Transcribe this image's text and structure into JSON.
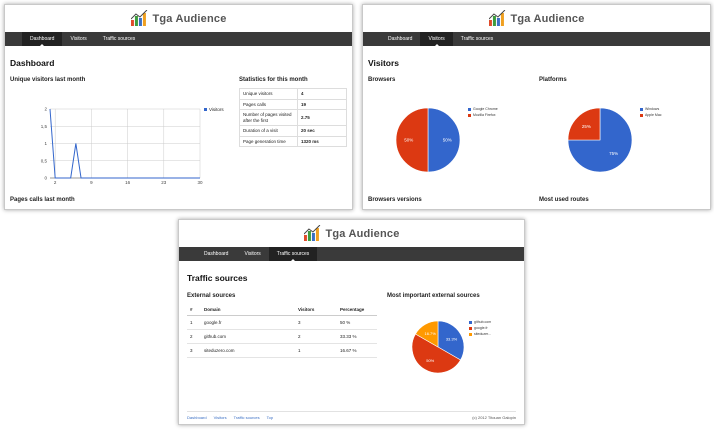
{
  "app": {
    "title": "Tga Audience"
  },
  "nav": [
    "Dashboard",
    "Visitors",
    "Traffic sources"
  ],
  "colors": {
    "blue": "#3366cc",
    "red": "#dc3912",
    "orange": "#ff9900",
    "navbar": "#3a3a3a"
  },
  "dashboard": {
    "page_title": "Dashboard",
    "visitors_chart_title": "Unique visitors last month",
    "stats_title": "Statistics for this month",
    "stats": [
      {
        "label": "Unique visitors",
        "value": "4"
      },
      {
        "label": "Pages calls",
        "value": "19"
      },
      {
        "label": "Number of pages visited after the first",
        "value": "2.75"
      },
      {
        "label": "Duration of a visit",
        "value": "20 sec"
      },
      {
        "label": "Page generation time",
        "value": "1320 ms"
      }
    ],
    "pages_calls_title": "Pages calls last month"
  },
  "visitors": {
    "page_title": "Visitors",
    "browsers_title": "Browsers",
    "platforms_title": "Platforms",
    "browsers_versions_title": "Browsers versions",
    "most_used_routes_title": "Most used routes"
  },
  "traffic": {
    "page_title": "Traffic sources",
    "external_title": "External sources",
    "pie_title": "Most important external sources",
    "columns": [
      "#",
      "Domain",
      "Visitors",
      "Percentage"
    ],
    "rows": [
      {
        "n": "1",
        "domain": "google.fr",
        "visitors": "3",
        "pct": "50 %"
      },
      {
        "n": "2",
        "domain": "github.com",
        "visitors": "2",
        "pct": "33.33 %"
      },
      {
        "n": "3",
        "domain": "siteduzero.com",
        "visitors": "1",
        "pct": "16.67 %"
      }
    ],
    "footer_links": [
      "Dashboard",
      "Visitors",
      "Traffic sources",
      "Top"
    ],
    "copyright": "(c) 2012 Titouan Galopin"
  },
  "chart_data": [
    {
      "type": "line",
      "title": "Unique visitors last month",
      "series": [
        {
          "name": "Visitors",
          "color": "#3366cc",
          "x": [
            1,
            2,
            3,
            4,
            5,
            6,
            7,
            8,
            9,
            10,
            11,
            12,
            13,
            14,
            15,
            16,
            17,
            18,
            19,
            20,
            21,
            22,
            23,
            24,
            25,
            26,
            27,
            28,
            29,
            30
          ],
          "y": [
            2,
            0,
            0,
            0,
            0,
            1,
            0,
            0,
            0,
            0,
            0,
            0,
            0,
            0,
            0,
            0,
            0,
            0,
            0,
            0,
            0,
            0,
            0,
            0,
            0,
            0,
            0,
            0,
            0,
            0
          ]
        }
      ],
      "x_ticks": [
        "2",
        "9",
        "16",
        "23",
        "30"
      ],
      "y_ticks": [
        "0",
        "0,5",
        "1",
        "1,5",
        "2"
      ],
      "ylim": [
        0,
        2
      ],
      "legend": "right",
      "grid": true
    },
    {
      "type": "pie",
      "title": "Browsers",
      "slices": [
        {
          "label": "Google Chrome",
          "value": 50,
          "text": "50%",
          "color": "#3366cc"
        },
        {
          "label": "Mozilla Firefox",
          "value": 50,
          "text": "50%",
          "color": "#dc3912"
        }
      ],
      "legend": "right"
    },
    {
      "type": "pie",
      "title": "Platforms",
      "slices": [
        {
          "label": "Windows",
          "value": 75,
          "text": "75%",
          "color": "#3366cc"
        },
        {
          "label": "Apple Mac",
          "value": 25,
          "text": "25%",
          "color": "#dc3912"
        }
      ],
      "legend": "right"
    },
    {
      "type": "pie",
      "title": "Most important external sources",
      "slices": [
        {
          "label": "github.com",
          "value": 33.3,
          "text": "33.3%",
          "color": "#3366cc"
        },
        {
          "label": "google.fr",
          "value": 50,
          "text": "50%",
          "color": "#dc3912"
        },
        {
          "label": "siteduzer...",
          "value": 16.7,
          "text": "16.7%",
          "color": "#ff9900"
        }
      ],
      "legend": "right"
    }
  ]
}
